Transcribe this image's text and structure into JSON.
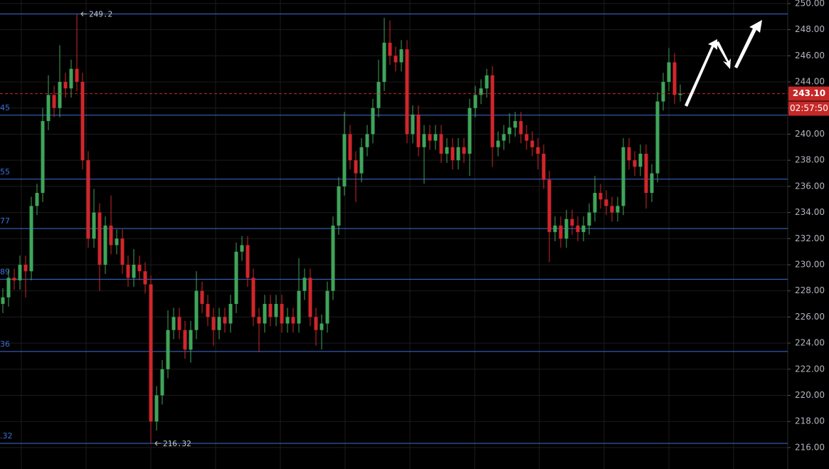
{
  "chart_data": {
    "type": "candlestick",
    "ylim": [
      214.36,
      250.27
    ],
    "yticks": [
      {
        "value": 216,
        "label": "216.00"
      },
      {
        "value": 218,
        "label": "218.00"
      },
      {
        "value": 220,
        "label": "220.00"
      },
      {
        "value": 222,
        "label": "222.00"
      },
      {
        "value": 224,
        "label": "224.00"
      },
      {
        "value": 226,
        "label": "226.00"
      },
      {
        "value": 228,
        "label": "228.00"
      },
      {
        "value": 230,
        "label": "230.00"
      },
      {
        "value": 232,
        "label": "232.00"
      },
      {
        "value": 234,
        "label": "234.00"
      },
      {
        "value": 236,
        "label": "236.00"
      },
      {
        "value": 238,
        "label": "238.00"
      },
      {
        "value": 240,
        "label": "240.00"
      },
      {
        "value": 242,
        "label": "242.00"
      },
      {
        "value": 244,
        "label": "244.00"
      },
      {
        "value": 246,
        "label": "246.00"
      },
      {
        "value": 248,
        "label": "248.00"
      },
      {
        "value": 250,
        "label": "250.00"
      }
    ],
    "grid": true,
    "up_color": "#3fa55a",
    "down_color": "#d0262b",
    "level_color": "#3d6fd6",
    "open": [
      227,
      227.5,
      229,
      228.8,
      230,
      229.5,
      234.5,
      235.5,
      241,
      243,
      242,
      244,
      243.5,
      245,
      244,
      238,
      232,
      234,
      230,
      233,
      231.5,
      232,
      230,
      229,
      230,
      229.5,
      228.5,
      218,
      220,
      222,
      225,
      226,
      225,
      223.5,
      225,
      228,
      227,
      226,
      225,
      226,
      225.5,
      227,
      231,
      231.5,
      229,
      226,
      225.5,
      227,
      226,
      227,
      225.5,
      226,
      225.5,
      228,
      229,
      226,
      225,
      225.5,
      228,
      233,
      236,
      240,
      238,
      237,
      239,
      240,
      242,
      244,
      247,
      246,
      245.5,
      246.5,
      240,
      241.5,
      239,
      240,
      239.5,
      240,
      238.5,
      239,
      238,
      239,
      238.5,
      242,
      243,
      243.5,
      244.5,
      239,
      239.5,
      240,
      240.5,
      241,
      240,
      239.5,
      239,
      238.5,
      236.5,
      232.5,
      233,
      232,
      233.5,
      233,
      232.5,
      233,
      234,
      235.5,
      235,
      234.5,
      234,
      234.5,
      239,
      238,
      237.5,
      238.5,
      235.5,
      237,
      242.5,
      244,
      245.5,
      243
    ],
    "high": [
      228.2,
      229.7,
      229.7,
      230.7,
      230.7,
      235.2,
      236.2,
      242,
      244.5,
      243.7,
      246.8,
      244.7,
      245.7,
      249.2,
      244.7,
      238.7,
      235.8,
      234.7,
      233.7,
      235.3,
      232.7,
      232.7,
      230.7,
      231.2,
      230.7,
      230.2,
      229.2,
      220.7,
      222.7,
      226.5,
      226.7,
      226.7,
      225.7,
      225.7,
      229.5,
      228.7,
      227.7,
      226.7,
      226.7,
      226.7,
      227.7,
      231.7,
      232.2,
      232.2,
      229.7,
      226.7,
      227.7,
      227.7,
      227.7,
      227.7,
      226.7,
      226.7,
      230.5,
      229.7,
      229.7,
      226.7,
      226.2,
      228.7,
      233.7,
      236.7,
      241.7,
      240.7,
      238.7,
      239.7,
      240.7,
      242.7,
      245.7,
      248.9,
      248.7,
      246.7,
      247.2,
      247.2,
      242.2,
      242.2,
      240.7,
      240.7,
      240.7,
      240.7,
      239.7,
      239.7,
      239.7,
      239.7,
      242.7,
      243.7,
      244.2,
      245,
      245.2,
      240.2,
      240.7,
      241.6,
      241.7,
      241.7,
      240.7,
      240.2,
      239.7,
      239.2,
      237.2,
      233.7,
      233.7,
      234.2,
      234.2,
      233.7,
      233.7,
      234.7,
      236.8,
      236.2,
      235.7,
      235.2,
      235.2,
      239.7,
      239.7,
      238.7,
      239.2,
      239.2,
      237.7,
      243.2,
      244.7,
      246.6,
      246.2,
      243.8
    ],
    "low": [
      226.3,
      226.8,
      228.1,
      228.1,
      227.5,
      228.8,
      233.8,
      234.8,
      240.3,
      241.3,
      241.3,
      242.8,
      242.8,
      243.3,
      237.3,
      231.3,
      231.3,
      228,
      229.3,
      230.8,
      230.8,
      229.3,
      228.3,
      228.3,
      228.8,
      227.8,
      216.32,
      217.3,
      219.3,
      221.3,
      224.3,
      224.3,
      222.8,
      222.5,
      224.3,
      226.3,
      225.3,
      223.8,
      224.3,
      224.8,
      224.8,
      226.3,
      230.3,
      228.3,
      225.3,
      223.3,
      224.8,
      225.3,
      225.3,
      224.8,
      224.8,
      224.8,
      224.8,
      227.3,
      225.3,
      223.8,
      223.5,
      224.8,
      227.3,
      232.3,
      235.3,
      237.3,
      234.8,
      236.3,
      238.3,
      239.3,
      241.3,
      243.3,
      245.3,
      244.8,
      244.8,
      239.3,
      239.3,
      238.3,
      236.2,
      238.8,
      238.8,
      237.8,
      237.8,
      237.3,
      237.3,
      237.8,
      236.8,
      241.3,
      242.3,
      242.8,
      237.5,
      238.3,
      238.8,
      239.3,
      239.8,
      239.3,
      238.8,
      238.3,
      237.3,
      235.8,
      230.2,
      231.8,
      231.3,
      231.3,
      232.3,
      231.8,
      231.8,
      232.3,
      233.3,
      234.3,
      233.8,
      233.3,
      233.3,
      233.8,
      237.3,
      236.8,
      236.8,
      234.3,
      234.8,
      236.3,
      241.8,
      243.3,
      242.3,
      242.5
    ],
    "close": [
      227.5,
      229,
      228.8,
      230,
      229.5,
      234.5,
      235.5,
      241,
      243,
      242,
      244,
      243.5,
      245,
      244,
      238,
      232,
      234,
      230,
      233,
      231.5,
      232,
      230,
      229,
      230,
      229.5,
      228.5,
      218,
      220,
      222,
      225,
      226,
      225,
      223.5,
      225,
      228,
      227,
      226,
      225,
      226,
      225.5,
      227,
      231,
      231.5,
      229,
      226,
      225.5,
      227,
      226,
      227,
      225.5,
      226,
      225.5,
      228,
      229,
      226,
      225,
      225.5,
      228,
      233,
      236,
      240,
      238,
      237,
      239,
      240,
      242,
      244,
      247,
      246,
      245.5,
      246.5,
      240,
      241.5,
      239,
      240,
      239.5,
      240,
      238.5,
      239,
      238,
      239,
      238.5,
      242,
      243,
      243.5,
      244.5,
      239,
      239.5,
      240,
      240.5,
      241,
      240,
      239.5,
      239,
      238.5,
      236.5,
      232.5,
      233,
      232,
      233.5,
      233,
      232.5,
      233,
      234,
      235.5,
      235,
      234.5,
      234,
      234.5,
      239,
      238,
      237.5,
      238.5,
      235.5,
      237,
      242.5,
      244,
      245.5,
      243,
      243.1
    ],
    "levels": [
      {
        "value": 249.2,
        "marker_label": "249.2"
      },
      {
        "value": 241.45,
        "edge_label": "45"
      },
      {
        "value": 236.55,
        "edge_label": "55"
      },
      {
        "value": 232.77,
        "edge_label": "77"
      },
      {
        "value": 228.89,
        "edge_label": "89"
      },
      {
        "value": 223.36,
        "edge_label": "36"
      },
      {
        "value": 216.32,
        "edge_label": ".32",
        "marker_label": "216.32"
      }
    ],
    "last_price": {
      "value": 243.1,
      "label": "243.10",
      "countdown": "02:57:50",
      "color": "#c62828"
    }
  }
}
